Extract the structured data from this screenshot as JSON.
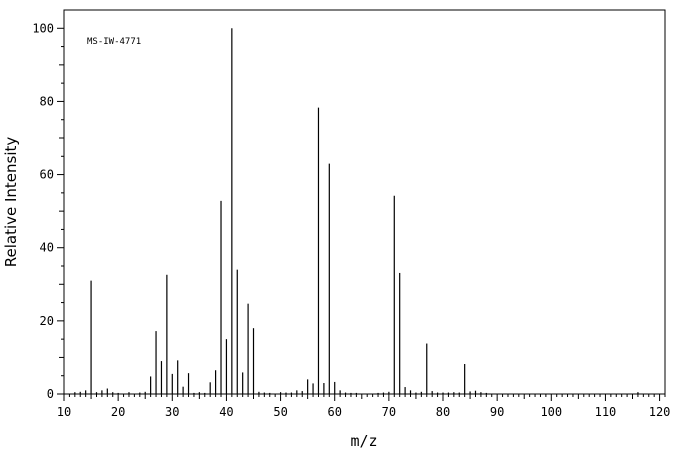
{
  "chart_data": {
    "type": "bar",
    "annotation": "MS-IW-4771",
    "xlabel": "m/z",
    "ylabel": "Relative Intensity",
    "xlim": [
      10,
      121
    ],
    "ylim": [
      0,
      105
    ],
    "x_ticks": [
      10,
      20,
      30,
      40,
      50,
      60,
      70,
      80,
      90,
      100,
      110,
      120
    ],
    "y_ticks": [
      0,
      20,
      40,
      60,
      80,
      100
    ],
    "grid": false,
    "series": [
      {
        "x": [
          12,
          13,
          14,
          15,
          16,
          17,
          18,
          19,
          20,
          22,
          24,
          25,
          26,
          27,
          28,
          29,
          30,
          31,
          32,
          33,
          34,
          35,
          36,
          37,
          38,
          39,
          40,
          41,
          42,
          43,
          44,
          45,
          46,
          47,
          48,
          50,
          51,
          52,
          53,
          54,
          55,
          56,
          57,
          58,
          59,
          60,
          61,
          62,
          63,
          64,
          68,
          69,
          70,
          71,
          72,
          73,
          74,
          75,
          76,
          77,
          78,
          79,
          80,
          81,
          82,
          83,
          84,
          85,
          86,
          87,
          88,
          116
        ],
        "values": [
          0.5,
          0.6,
          1.0,
          31,
          0.5,
          1.0,
          1.5,
          0.5,
          0.3,
          0.5,
          0.4,
          0.6,
          4.8,
          17.2,
          9.0,
          32.6,
          5.5,
          9.2,
          2.0,
          5.7,
          0.3,
          0.5,
          0.3,
          3.2,
          6.5,
          52.8,
          15.0,
          100,
          34.0,
          5.9,
          24.7,
          18.0,
          0.6,
          0.4,
          0.3,
          0.5,
          0.4,
          0.4,
          1.0,
          0.8,
          4.0,
          2.9,
          78.3,
          3.0,
          63.0,
          3.3,
          1.0,
          0.4,
          0.3,
          0.3,
          0.3,
          0.4,
          0.6,
          54.2,
          33.1,
          1.9,
          1.0,
          0.4,
          0.6,
          13.8,
          0.8,
          0.4,
          0.4,
          0.4,
          0.5,
          0.4,
          8.2,
          0.7,
          0.9,
          0.5,
          0.3,
          0.5
        ]
      }
    ]
  }
}
